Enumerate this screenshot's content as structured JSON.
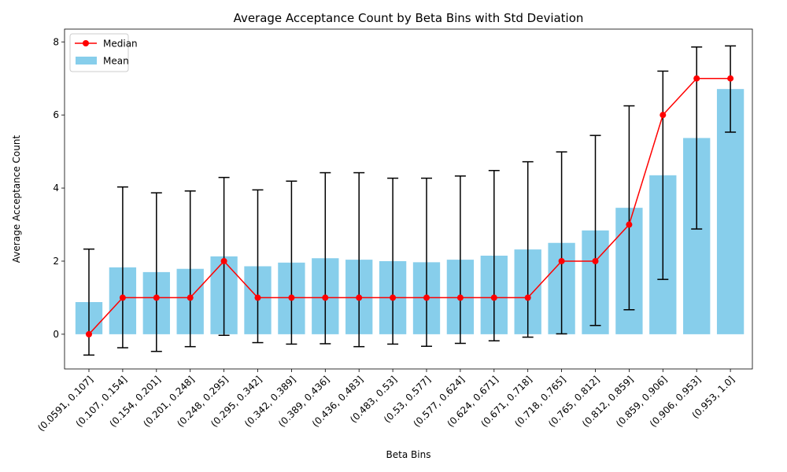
{
  "chart_data": {
    "type": "bar",
    "title": "Average Acceptance Count by Beta Bins with Std Deviation",
    "xlabel": "Beta Bins",
    "ylabel": "Average Acceptance Count",
    "ylim": [
      -0.95,
      8.35
    ],
    "yticks": [
      0,
      2,
      4,
      6,
      8
    ],
    "grid": false,
    "legend_position": "upper-left",
    "categories": [
      "(0.0591, 0.107]",
      "(0.107, 0.154]",
      "(0.154, 0.201]",
      "(0.201, 0.248]",
      "(0.248, 0.295]",
      "(0.295, 0.342]",
      "(0.342, 0.389]",
      "(0.389, 0.436]",
      "(0.436, 0.483]",
      "(0.483, 0.53]",
      "(0.53, 0.577]",
      "(0.577, 0.624]",
      "(0.624, 0.671]",
      "(0.671, 0.718]",
      "(0.718, 0.765]",
      "(0.765, 0.812]",
      "(0.812, 0.859]",
      "(0.859, 0.906]",
      "(0.906, 0.953]",
      "(0.953, 1.0]"
    ],
    "series": [
      {
        "name": "Mean",
        "kind": "bar",
        "color": "#87ceeb",
        "values": [
          0.88,
          1.83,
          1.7,
          1.79,
          2.13,
          1.86,
          1.96,
          2.08,
          2.04,
          2.0,
          1.97,
          2.04,
          2.15,
          2.32,
          2.5,
          2.84,
          3.46,
          4.35,
          5.37,
          6.71
        ],
        "std": [
          1.45,
          2.2,
          2.17,
          2.13,
          2.16,
          2.09,
          2.23,
          2.34,
          2.38,
          2.27,
          2.3,
          2.29,
          2.33,
          2.4,
          2.49,
          2.6,
          2.79,
          2.85,
          2.49,
          1.18
        ]
      },
      {
        "name": "Median",
        "kind": "line",
        "color": "#ff0000",
        "values": [
          0,
          1,
          1,
          1,
          2,
          1,
          1,
          1,
          1,
          1,
          1,
          1,
          1,
          1,
          2,
          2,
          3,
          6,
          7,
          7
        ]
      }
    ]
  }
}
